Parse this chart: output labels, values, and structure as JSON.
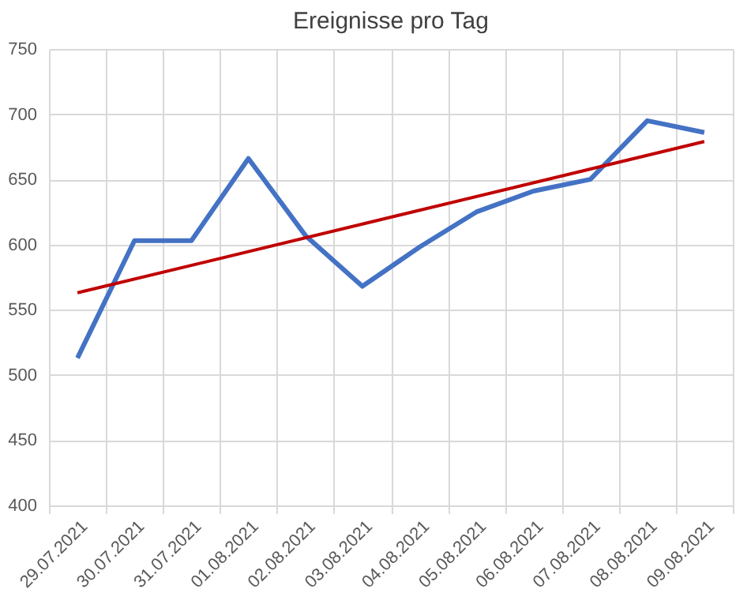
{
  "chart_data": {
    "type": "line",
    "title": "Ereignisse pro Tag",
    "categories": [
      "29.07.2021",
      "30.07.2021",
      "31.07.2021",
      "01.08.2021",
      "02.08.2021",
      "03.08.2021",
      "04.08.2021",
      "05.08.2021",
      "06.08.2021",
      "07.08.2021",
      "08.08.2021",
      "09.08.2021"
    ],
    "series": [
      {
        "color": "#4472c4",
        "values": [
          513,
          603,
          603,
          666,
          607,
          568,
          598,
          625,
          641,
          650,
          695,
          686
        ]
      },
      {
        "type": "line",
        "color": "#c00000",
        "x": [
          "29.07.2021",
          "09.08.2021"
        ],
        "values": [
          563,
          679
        ]
      }
    ],
    "ylim": [
      400,
      750
    ],
    "yticks": [
      400,
      450,
      500,
      550,
      600,
      650,
      700,
      750
    ],
    "grid": true
  }
}
